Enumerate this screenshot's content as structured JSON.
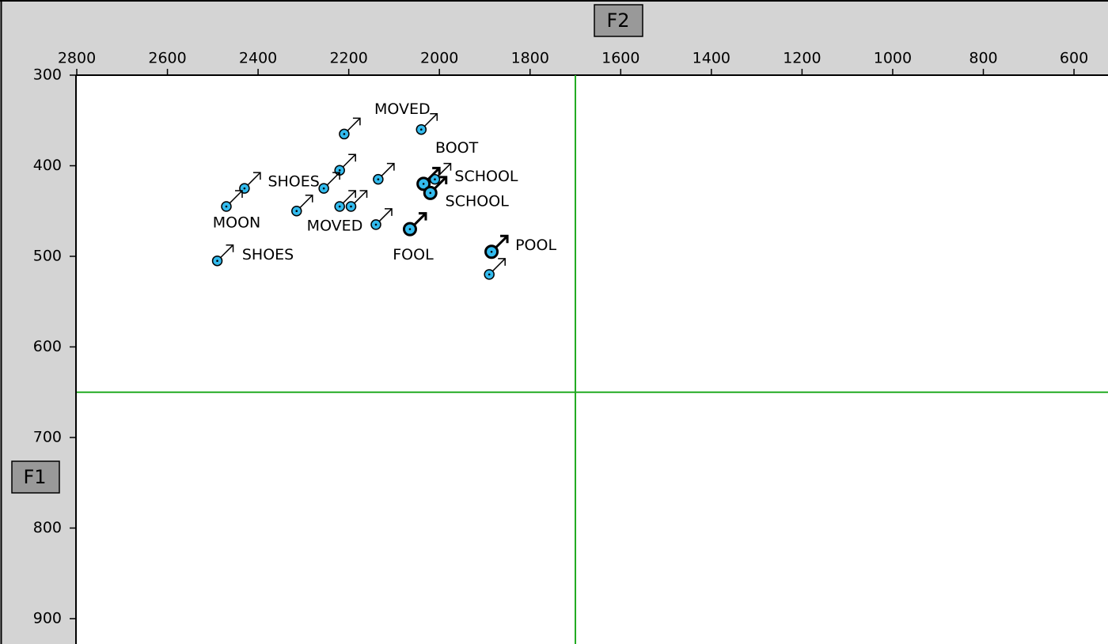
{
  "chart_data": {
    "type": "scatter",
    "xlabel": "F2",
    "ylabel": "F1",
    "xlim": [
      2800,
      525
    ],
    "ylim": [
      300,
      928
    ],
    "xticks": [
      2800,
      2600,
      2400,
      2200,
      2000,
      1800,
      1600,
      1400,
      1200,
      1000,
      800,
      600
    ],
    "yticks": [
      300,
      400,
      500,
      600,
      700,
      800,
      900
    ],
    "reference_lines": {
      "x": 1700,
      "y": 650,
      "color": "#22aa22"
    },
    "series": [
      {
        "marker": "small",
        "color": "#33bbee",
        "x": [
          2210,
          2040,
          2220,
          2135,
          2430,
          2255,
          2010,
          2470,
          2315,
          2220,
          2195,
          2140,
          2490,
          1890
        ],
        "values": [
          365,
          360,
          405,
          415,
          425,
          425,
          415,
          445,
          450,
          445,
          445,
          465,
          505,
          520
        ],
        "labels": [
          null,
          "MOVED",
          null,
          null,
          null,
          "SHOES",
          "SCHOOL",
          "MOON",
          null,
          null,
          null,
          "MOVED",
          "SHOES",
          null
        ]
      },
      {
        "marker": "large",
        "color": "#33bbee",
        "x": [
          2035,
          2020,
          2065,
          1885
        ],
        "values": [
          420,
          430,
          470,
          495
        ],
        "labels": [
          "BOOT",
          "SCHOOL",
          "FOOL",
          "POOL"
        ]
      }
    ]
  }
}
